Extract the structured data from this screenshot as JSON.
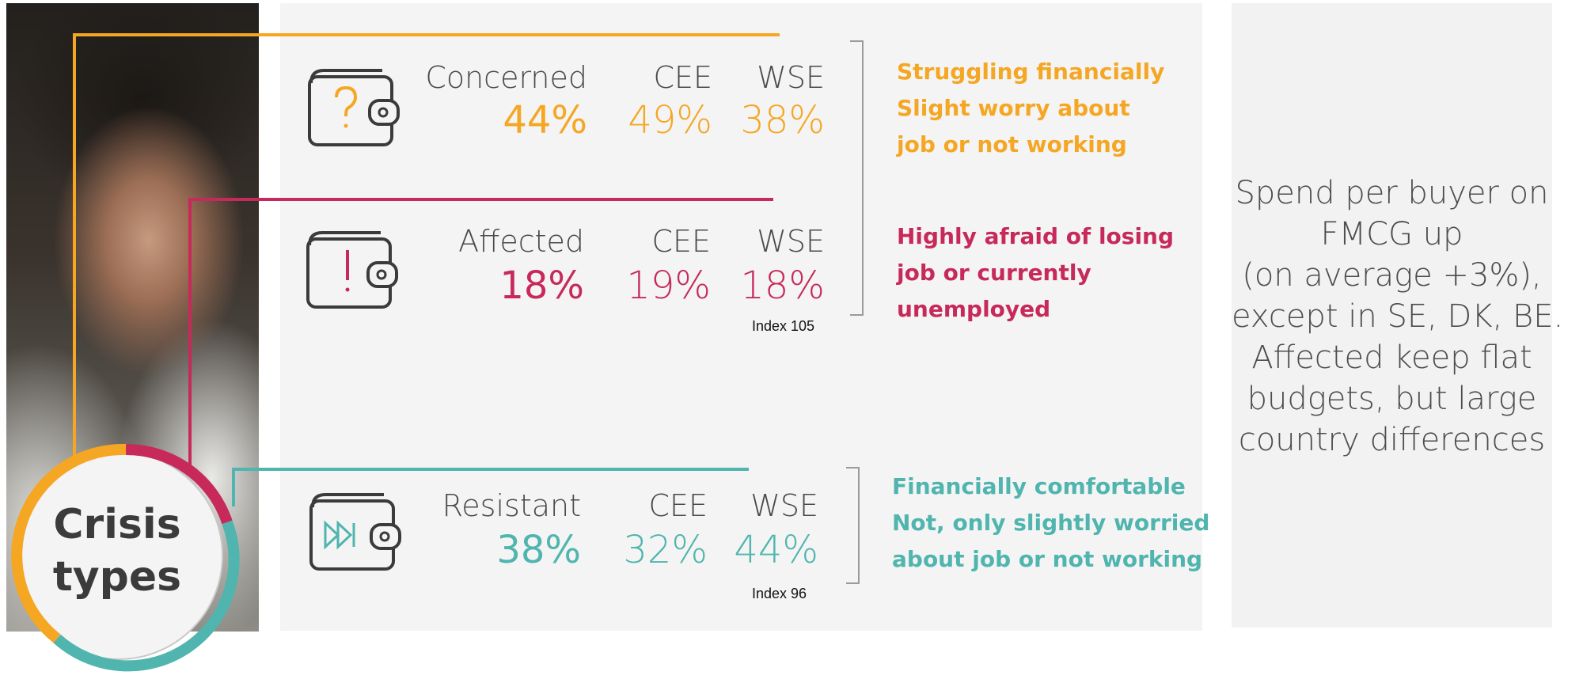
{
  "colors": {
    "concerned": "#f5a623",
    "affected": "#c72a5a",
    "resistant": "#4fb5ae"
  },
  "badge": {
    "line1": "Crisis",
    "line2": "types"
  },
  "rows": [
    {
      "label": "Concerned",
      "value": "44%",
      "cee_label": "CEE",
      "cee": "49%",
      "wse_label": "WSE",
      "wse": "38%",
      "icon": "wallet-question-icon",
      "desc": [
        "Struggling financially",
        "Slight worry about",
        "job or not working"
      ]
    },
    {
      "label": "Affected",
      "value": "18%",
      "cee_label": "CEE",
      "cee": "19%",
      "wse_label": "WSE",
      "wse": "18%",
      "icon": "wallet-exclamation-icon",
      "index": "Index 105",
      "desc": [
        "Highly afraid of losing",
        "job or currently",
        "unemployed"
      ]
    },
    {
      "label": "Resistant",
      "value": "38%",
      "cee_label": "CEE",
      "cee": "32%",
      "wse_label": "WSE",
      "wse": "44%",
      "icon": "wallet-fast-forward-icon",
      "index": "Index 96",
      "desc": [
        "Financially comfortable",
        "Not, only slightly worried",
        "about job or not working"
      ]
    }
  ],
  "side": {
    "lines": [
      "Spend per buyer on",
      "FMCG up",
      "(on average  +3%),",
      "except in SE, DK, BE.",
      "Affected keep flat",
      "budgets, but large",
      "country differences"
    ]
  }
}
